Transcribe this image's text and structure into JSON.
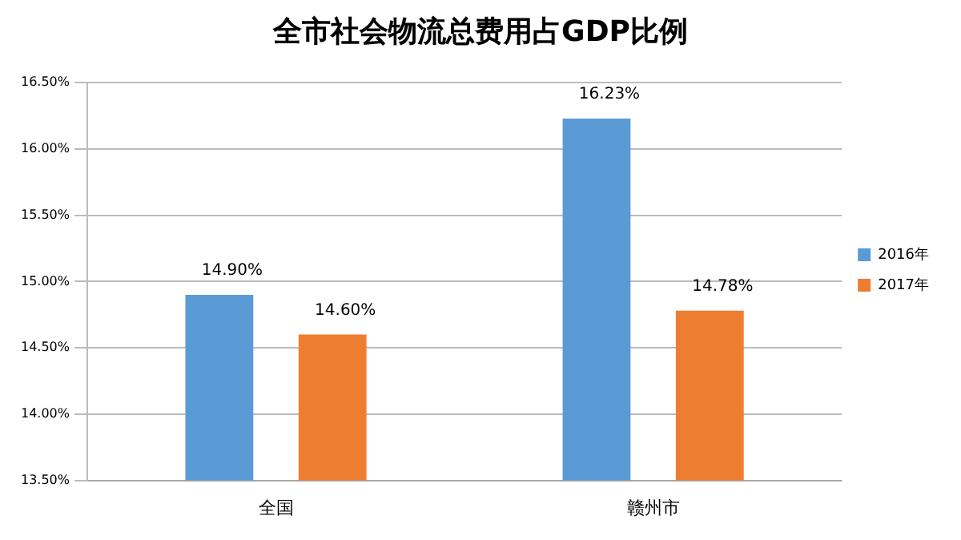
{
  "chart_data": {
    "type": "bar",
    "title": "全市社会物流总费用占GDP比例",
    "categories": [
      "全国",
      "赣州市"
    ],
    "series": [
      {
        "name": "2016年",
        "color": "#5b9bd5",
        "values": [
          14.9,
          16.23
        ],
        "value_labels": [
          "14.90%",
          "16.23%"
        ]
      },
      {
        "name": "2017年",
        "color": "#ed7d31",
        "values": [
          14.6,
          14.78
        ],
        "value_labels": [
          "14.60%",
          "14.78%"
        ]
      }
    ],
    "ylim": [
      13.5,
      16.5
    ],
    "yticks": [
      {
        "value": 13.5,
        "label": "13.50%"
      },
      {
        "value": 14,
        "label": "14.00%"
      },
      {
        "value": 14.5,
        "label": "14.50%"
      },
      {
        "value": 15,
        "label": "15.00%"
      },
      {
        "value": 15.5,
        "label": "15.50%"
      },
      {
        "value": 16,
        "label": "16.00%"
      },
      {
        "value": 16.5,
        "label": "16.50%"
      }
    ],
    "grid": "y",
    "legend": "right"
  }
}
